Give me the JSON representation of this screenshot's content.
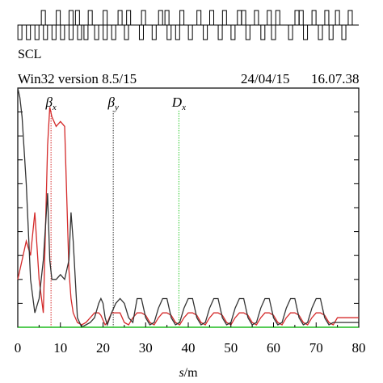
{
  "header": {
    "program": "Win32 version 8.5/15",
    "date": "24/04/15",
    "time": "16.07.38",
    "lattice_label": "SCL"
  },
  "colors": {
    "beta_x": "#d42a2a",
    "beta_y": "#333333",
    "dispersion": "#2ecc2e",
    "axis": "#000000"
  },
  "chart_data": {
    "type": "line",
    "title": "",
    "xlabel": "s/m",
    "ylabel": "",
    "xlim": [
      0,
      80
    ],
    "ylim": [
      0,
      50
    ],
    "x_ticks": [
      0,
      10,
      20,
      30,
      40,
      50,
      60,
      70,
      80
    ],
    "legend": [
      {
        "label": "βx",
        "series": "beta_x",
        "marker_s": 7.8
      },
      {
        "label": "βy",
        "series": "beta_y",
        "marker_s": 22.4
      },
      {
        "label": "Dx",
        "series": "dispersion",
        "marker_s": 37.8
      }
    ],
    "series": [
      {
        "key": "beta_x",
        "x": [
          0,
          1,
          2,
          3,
          4,
          5,
          6,
          7,
          7.5,
          8,
          9,
          10,
          11,
          12,
          12.5,
          13,
          14,
          15,
          16,
          17,
          18,
          19,
          19.5,
          20,
          20.5,
          21,
          22,
          23,
          24,
          25,
          26,
          27,
          28,
          29,
          30,
          31,
          32,
          33,
          34,
          35,
          36,
          37,
          38,
          39,
          40,
          41,
          42,
          43,
          44,
          45,
          46,
          47,
          48,
          49,
          50,
          51,
          52,
          53,
          54,
          55,
          56,
          57,
          58,
          59,
          60,
          61,
          62,
          63,
          64,
          65,
          66,
          67,
          68,
          69,
          70,
          71,
          72,
          73,
          74,
          75,
          76,
          77,
          78,
          79,
          80
        ],
        "y": [
          10,
          14,
          18,
          15,
          24,
          10,
          3,
          38,
          46,
          44,
          42,
          43,
          42,
          12,
          6,
          3,
          1,
          0.5,
          1,
          2,
          3,
          3,
          2.5,
          1.5,
          0.5,
          1,
          3,
          3,
          3,
          1,
          0.5,
          2,
          3,
          3,
          2.5,
          1,
          0.5,
          2,
          3,
          3,
          2.5,
          1,
          0.5,
          2,
          3,
          3,
          2.5,
          1,
          0.5,
          2,
          3,
          3,
          2.5,
          1,
          0.5,
          2,
          3,
          3,
          2.5,
          1,
          0.5,
          2,
          3,
          3,
          2.5,
          1,
          0.5,
          2,
          3,
          3,
          2.5,
          1,
          0.5,
          2,
          3,
          3,
          2.5,
          1,
          0.5,
          2,
          2,
          2,
          2,
          2,
          2
        ]
      },
      {
        "key": "beta_y",
        "x": [
          0,
          0.5,
          1,
          2,
          3,
          4,
          5,
          6,
          7,
          7.5,
          8,
          9,
          10,
          11,
          12,
          12.5,
          13,
          14,
          15,
          16,
          17,
          18,
          19,
          19.5,
          20,
          20.5,
          21,
          22,
          23,
          24,
          25,
          26,
          27,
          28,
          29,
          30,
          31,
          32,
          33,
          34,
          35,
          36,
          37,
          38,
          39,
          40,
          41,
          42,
          43,
          44,
          45,
          46,
          47,
          48,
          49,
          50,
          51,
          52,
          53,
          54,
          55,
          56,
          57,
          58,
          59,
          60,
          61,
          62,
          63,
          64,
          65,
          66,
          67,
          68,
          69,
          70,
          71,
          72,
          73,
          74,
          75,
          76,
          77,
          78,
          79,
          80
        ],
        "y": [
          50,
          48,
          44,
          30,
          10,
          3,
          6,
          14,
          28,
          14,
          10,
          10,
          11,
          10,
          14,
          24,
          18,
          2,
          0,
          0.5,
          1,
          2,
          5,
          6,
          5,
          2,
          0.5,
          3,
          5,
          6,
          5,
          2,
          1,
          6,
          6,
          2,
          0.5,
          1,
          4,
          6,
          6,
          2,
          0.5,
          1,
          4,
          6,
          6,
          2,
          0.5,
          1,
          4,
          6,
          6,
          2,
          0.5,
          1,
          4,
          6,
          6,
          2,
          0.5,
          1,
          4,
          6,
          6,
          2,
          0.5,
          1,
          4,
          6,
          6,
          2,
          0.5,
          1,
          4,
          6,
          6,
          2,
          0.5,
          1,
          1,
          1,
          1,
          1,
          1,
          1
        ]
      },
      {
        "key": "dispersion",
        "x": [
          0,
          80
        ],
        "y": [
          0,
          0
        ]
      }
    ],
    "lattice_elements": {
      "upper_y": [
        6,
        9.5,
        12.5,
        14,
        17,
        20.5,
        24,
        26,
        29.5,
        33.5,
        35,
        38.5,
        42.5,
        45.5,
        48.5,
        52,
        53,
        56,
        59,
        61,
        65.5,
        66.5,
        69.5,
        72.5,
        75,
        78
      ],
      "lower_y": [
        0.5,
        2.5,
        4.5,
        6.5,
        8.5,
        10.5,
        12.5,
        14.5,
        16,
        18.5,
        20.5,
        22.5,
        25.5,
        29,
        32,
        35.5,
        37.5,
        40.5,
        44,
        47.5,
        50.5,
        54,
        57.5,
        60,
        64,
        67.5,
        71,
        73.5,
        76.5
      ]
    }
  }
}
